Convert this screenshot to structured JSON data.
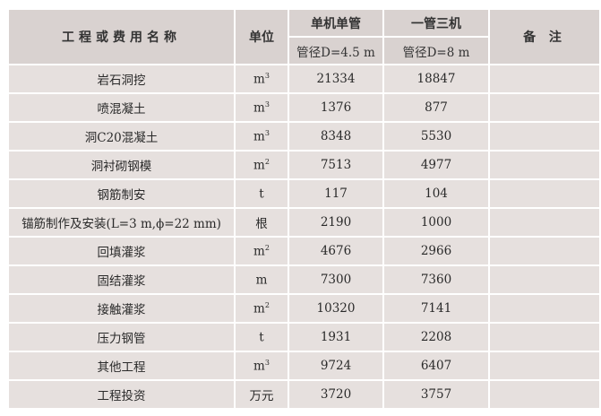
{
  "header": {
    "name": "工程或费用名称",
    "unit": "单位",
    "option1": "单机单管",
    "option1_sub": "管径D=4.5 m",
    "option2": "一管三机",
    "option2_sub": "管径D=8 m",
    "remark": "备 注"
  },
  "rows": [
    {
      "name": "岩石洞挖",
      "unit_base": "m",
      "unit_exp": "3",
      "v1": "21334",
      "v2": "18847",
      "remark": ""
    },
    {
      "name": "喷混凝土",
      "unit_base": "m",
      "unit_exp": "3",
      "v1": "1376",
      "v2": "877",
      "remark": ""
    },
    {
      "name": "洞C20混凝土",
      "unit_base": "m",
      "unit_exp": "3",
      "v1": "8348",
      "v2": "5530",
      "remark": ""
    },
    {
      "name": "洞衬砌钢模",
      "unit_base": "m",
      "unit_exp": "2",
      "v1": "7513",
      "v2": "4977",
      "remark": ""
    },
    {
      "name": "钢筋制安",
      "unit_base": "t",
      "unit_exp": "",
      "v1": "117",
      "v2": "104",
      "remark": ""
    },
    {
      "name": "锚筋制作及安装(L=3 m,ϕ=22 mm)",
      "unit_base": "根",
      "unit_exp": "",
      "v1": "2190",
      "v2": "1000",
      "remark": ""
    },
    {
      "name": "回填灌浆",
      "unit_base": "m",
      "unit_exp": "2",
      "v1": "4676",
      "v2": "2966",
      "remark": ""
    },
    {
      "name": "固结灌浆",
      "unit_base": "m",
      "unit_exp": "",
      "v1": "7300",
      "v2": "7360",
      "remark": ""
    },
    {
      "name": "接触灌浆",
      "unit_base": "m",
      "unit_exp": "2",
      "v1": "10320",
      "v2": "7141",
      "remark": ""
    },
    {
      "name": "压力钢管",
      "unit_base": "t",
      "unit_exp": "",
      "v1": "1931",
      "v2": "2208",
      "remark": ""
    },
    {
      "name": "其他工程",
      "unit_base": "m",
      "unit_exp": "3",
      "v1": "9724",
      "v2": "6407",
      "remark": ""
    },
    {
      "name": "工程投资",
      "unit_base": "万元",
      "unit_exp": "",
      "v1": "3720",
      "v2": "3757",
      "remark": ""
    }
  ]
}
